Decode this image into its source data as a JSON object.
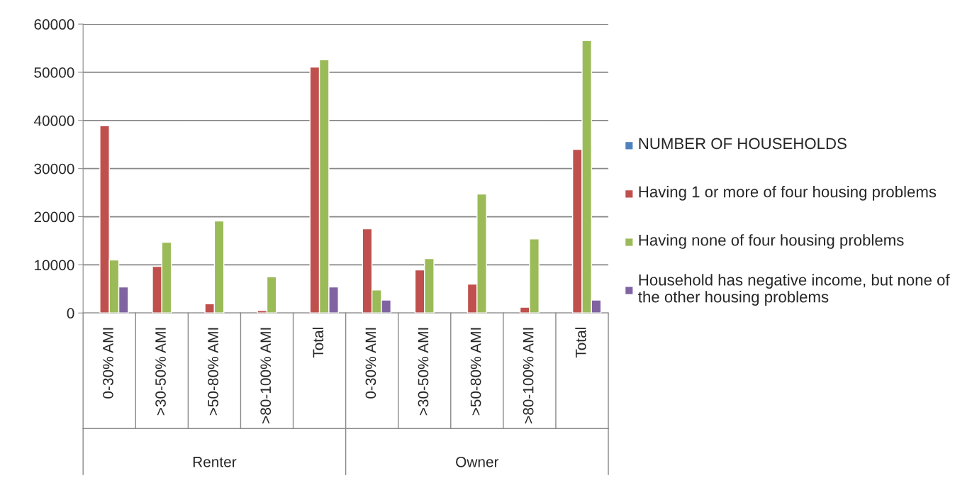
{
  "chart_data": {
    "type": "bar",
    "categories": [
      "0-30% AMI",
      ">30-50% AMI",
      ">50-80% AMI",
      ">80-100% AMI",
      "Total",
      "0-30% AMI",
      ">30-50% AMI",
      ">50-80% AMI",
      ">80-100% AMI",
      "Total"
    ],
    "series": [
      {
        "name": "NUMBER OF HOUSEHOLDS",
        "color": "#4f81bd",
        "values": [
          null,
          null,
          null,
          null,
          null,
          null,
          null,
          null,
          null,
          null
        ]
      },
      {
        "name": "Having 1 or more of four housing problems",
        "color": "#c0504d",
        "values": [
          38900,
          9700,
          1900,
          500,
          51100,
          17500,
          8950,
          6000,
          1200,
          34000
        ]
      },
      {
        "name": "Having none of four housing problems",
        "color": "#9bbb59",
        "values": [
          11000,
          14700,
          19100,
          7500,
          52600,
          4800,
          11300,
          24700,
          15400,
          56600
        ]
      },
      {
        "name": "Household has negative income, but none of the other housing problems",
        "color": "#8064a2",
        "values": [
          5400,
          null,
          null,
          null,
          5400,
          2700,
          null,
          null,
          null,
          2700
        ]
      }
    ],
    "annotations": [
      "Renter",
      "Owner"
    ],
    "ylim": [
      0,
      60000
    ],
    "yticks": [
      0,
      10000,
      20000,
      30000,
      40000,
      50000,
      60000
    ],
    "grid": "y",
    "legend": "right"
  }
}
